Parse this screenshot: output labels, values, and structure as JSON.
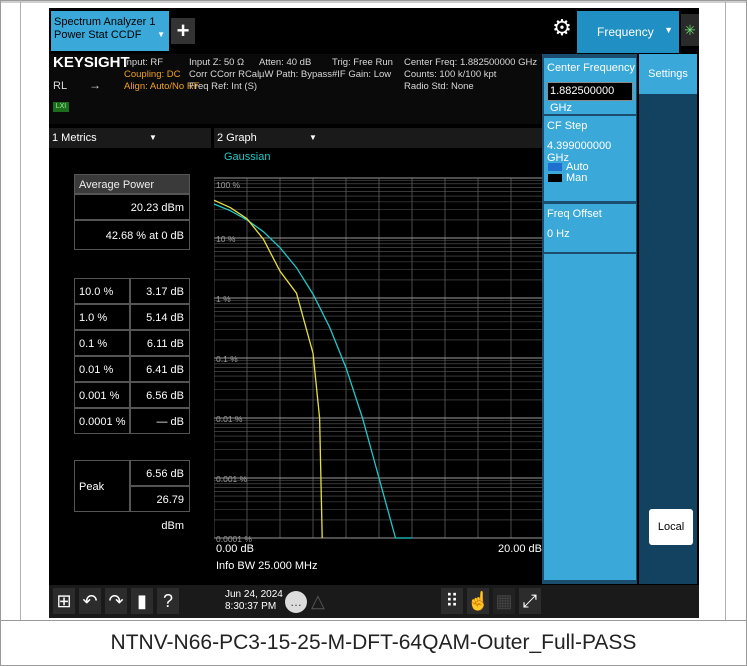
{
  "caption": "NTNV-N66-PC3-15-25-M-DFT-64QAM-Outer_Full-PASS",
  "header": {
    "tab_line1": "Spectrum Analyzer 1",
    "tab_line2": "Power Stat CCDF",
    "add_tab": "+",
    "menu_label": "Frequency"
  },
  "info": {
    "logo": "KEYSIGHT",
    "rl": "RL",
    "lxi": "LXI",
    "col1": [
      "Input: RF",
      "Coupling: DC",
      "Align: Auto/No RF"
    ],
    "col2": [
      "Input Z: 50 Ω",
      "Corr CCorr RCal",
      "Freq Ref: Int (S)"
    ],
    "col3": [
      "Atten: 40 dB",
      "µW Path: Bypass"
    ],
    "col4": [
      "Trig: Free Run",
      "#IF Gain: Low"
    ],
    "col5": [
      "Center Freq: 1.882500000 GHz",
      "Counts: 100 k/100 kpt",
      "Radio Std: None"
    ]
  },
  "metrics": {
    "window_title": "1 Metrics",
    "avg_power_label": "Average Power",
    "avg_power_dbm": "20.23 dBm",
    "avg_power_pct": "42.68 % at 0 dB",
    "rows": [
      {
        "pct": "10.0 %",
        "val": "3.17 dB"
      },
      {
        "pct": "1.0 %",
        "val": "5.14 dB"
      },
      {
        "pct": "0.1 %",
        "val": "6.11 dB"
      },
      {
        "pct": "0.01 %",
        "val": "6.41 dB"
      },
      {
        "pct": "0.001 %",
        "val": "6.56 dB"
      },
      {
        "pct": "0.0001 %",
        "val": "— dB"
      }
    ],
    "peak_label": "Peak",
    "peak_db": "6.56 dB",
    "peak_dbm": "26.79 dBm"
  },
  "graph": {
    "window_title": "2 Graph",
    "legend": "Gaussian",
    "y_ticks": [
      "100 %",
      "10 %",
      "1 %",
      "0.1 %",
      "0.01 %",
      "0.001 %",
      "0.0001 %"
    ],
    "x_start": "0.00 dB",
    "x_end": "20.00 dB",
    "info_bw": "Info BW 25.000 MHz"
  },
  "chart_data": {
    "type": "line",
    "title": "",
    "xlabel": "",
    "ylabel": "",
    "xlim": [
      0,
      20
    ],
    "ylim_log_percent": [
      0.0001,
      100
    ],
    "grid": true,
    "series": [
      {
        "name": "Gaussian",
        "color": "#20c8c8",
        "x": [
          0,
          1,
          2,
          3,
          4,
          5,
          6,
          7,
          8,
          9,
          10,
          11,
          12
        ],
        "y": [
          36.8,
          28.4,
          20.0,
          12.7,
          6.9,
          3.2,
          1.16,
          0.33,
          0.069,
          0.01,
          0.001,
          7e-05,
          3e-06
        ]
      },
      {
        "name": "",
        "color": "#e8e040",
        "x": [
          0,
          1,
          2,
          3,
          4,
          5,
          6,
          6.4,
          6.56
        ],
        "y": [
          42.68,
          32.0,
          21.0,
          9.5,
          2.8,
          1.2,
          0.12,
          0.01,
          0.0001
        ]
      }
    ]
  },
  "right_panel": {
    "center_freq_label": "Center Frequency",
    "center_freq_value": "1.882500000 GHz",
    "cf_step_label": "CF Step",
    "cf_step_value": "4.399000000 GHz",
    "auto": "Auto",
    "man": "Man",
    "freq_offset_label": "Freq Offset",
    "freq_offset_value": "0 Hz",
    "side_tab": "Settings",
    "local": "Local"
  },
  "taskbar": {
    "date": "Jun 24, 2024",
    "time": "8:30:37 PM"
  },
  "colors": {
    "accent": "#3aa8d8",
    "gaussian": "#20c8c8",
    "trace": "#e8e040",
    "coupling": "#f0a020"
  }
}
